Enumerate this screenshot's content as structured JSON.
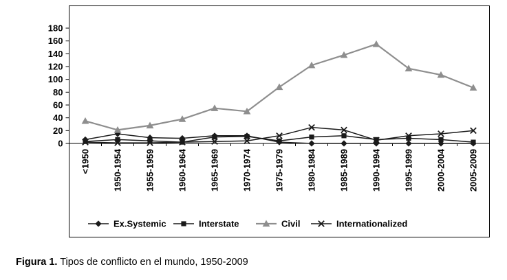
{
  "caption": {
    "label": "Figura 1.",
    "text": "Tipos de conflicto en el mundo, 1950-2009"
  },
  "chart_data": {
    "type": "line",
    "title": "",
    "xlabel": "",
    "ylabel": "",
    "ylim": [
      0,
      180
    ],
    "ytick_step": 20,
    "grid": false,
    "legend_position": "bottom",
    "categories": [
      "<1950",
      "1950-1954",
      "1955-1959",
      "1960-1964",
      "1965-1969",
      "1970-1974",
      "1975-1979",
      "1980-1984",
      "1985-1989",
      "1990-1994",
      "1995-1999",
      "2000-2004",
      "2005-2009"
    ],
    "series": [
      {
        "name": "Ex.Systemic",
        "marker": "diamond-marker",
        "color": "#1a1a1a",
        "values": [
          6,
          15,
          9,
          8,
          12,
          12,
          2,
          0,
          0,
          0,
          0,
          0,
          0
        ]
      },
      {
        "name": "Interstate",
        "marker": "square-marker",
        "color": "#1a1a1a",
        "values": [
          3,
          6,
          4,
          2,
          10,
          11,
          4,
          10,
          12,
          6,
          8,
          6,
          2
        ]
      },
      {
        "name": "Civil",
        "marker": "triangle-marker",
        "color": "#8e8e8e",
        "values": [
          35,
          21,
          28,
          38,
          55,
          50,
          88,
          122,
          138,
          155,
          117,
          107,
          87
        ]
      },
      {
        "name": "Internationalized",
        "marker": "x-marker",
        "color": "#1a1a1a",
        "values": [
          2,
          1,
          1,
          2,
          3,
          4,
          12,
          25,
          21,
          5,
          12,
          15,
          20
        ]
      }
    ]
  }
}
